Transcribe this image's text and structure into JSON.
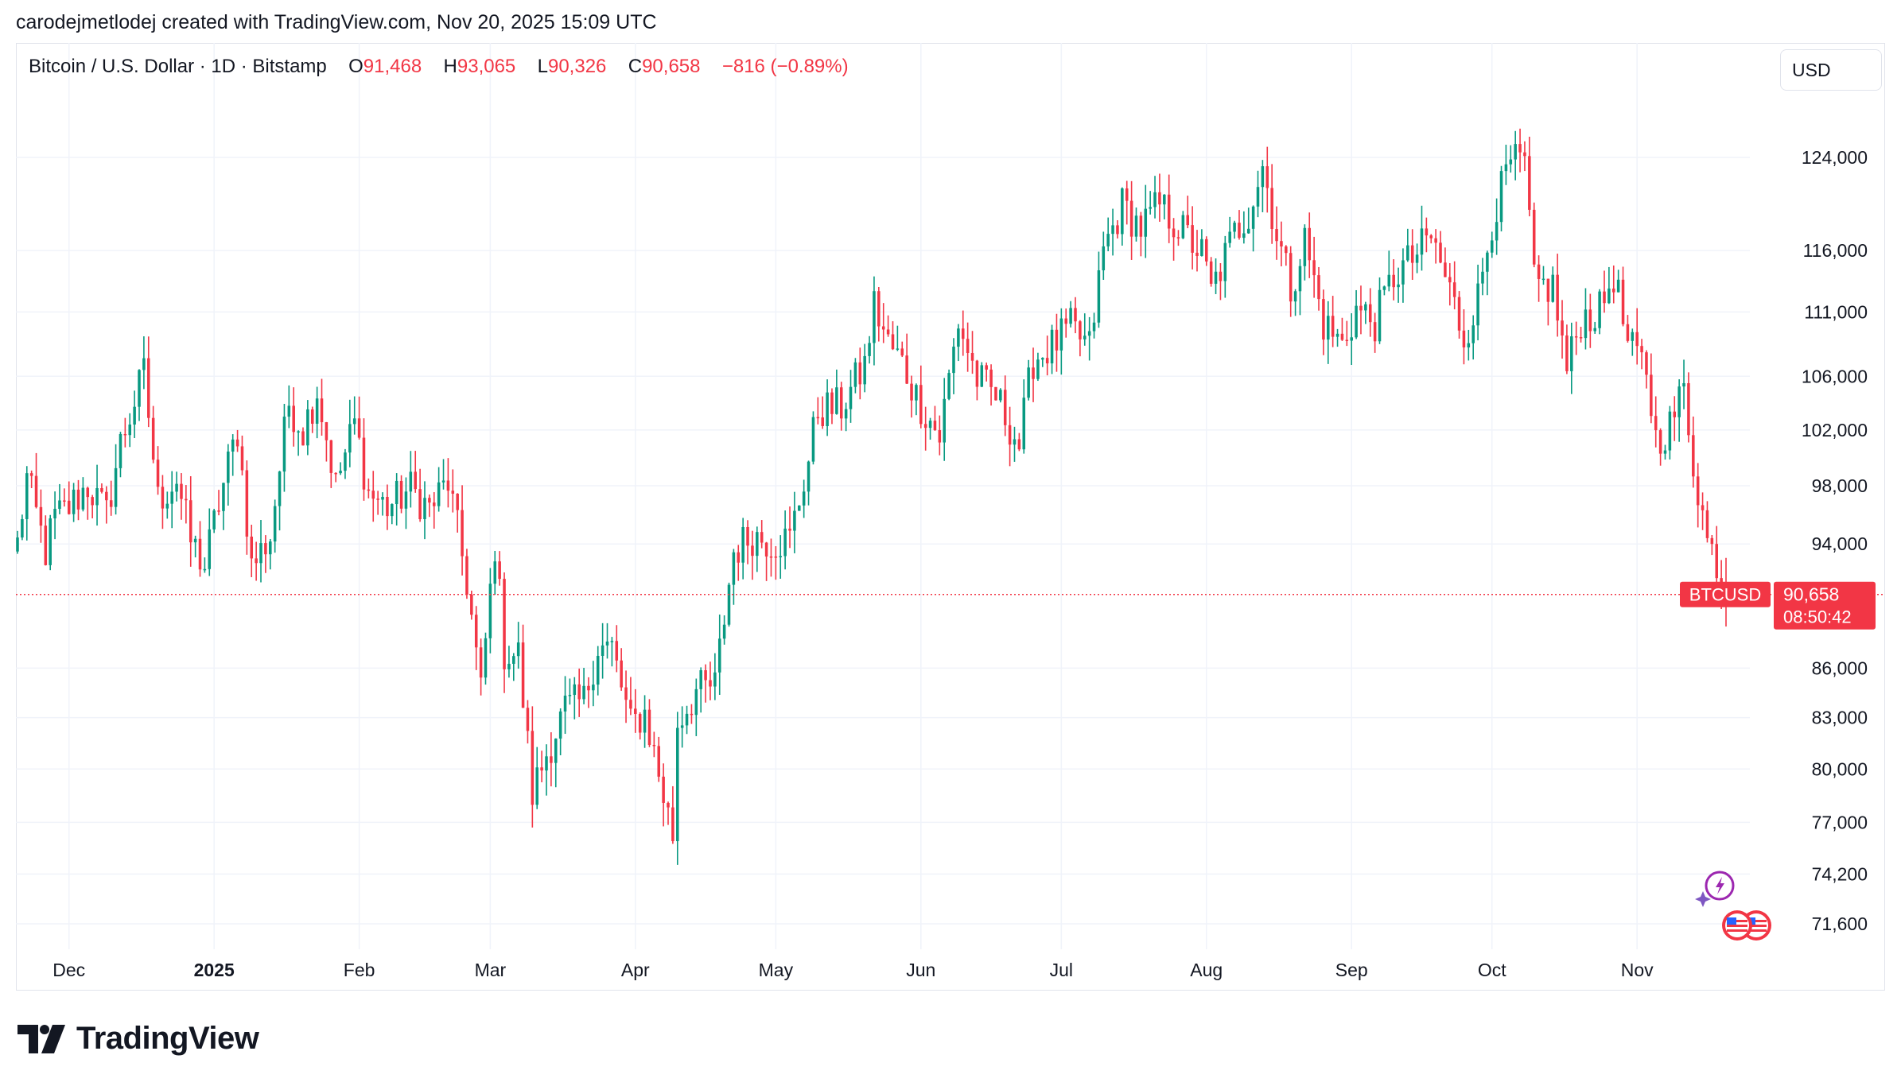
{
  "attribution": "carodejmetlodej created with TradingView.com, Nov 20, 2025 15:09 UTC",
  "legend": {
    "symbol": "Bitcoin / U.S. Dollar · 1D · Bitstamp",
    "o_label": "O",
    "o_value": "91,468",
    "h_label": "H",
    "h_value": "93,065",
    "l_label": "L",
    "l_value": "90,326",
    "c_label": "C",
    "c_value": "90,658",
    "change": "−816 (−0.89%)"
  },
  "currency_button": "USD",
  "brand": "TradingView",
  "colors": {
    "up": "#089981",
    "down": "#f23645",
    "grid": "#f0f3fa",
    "text": "#131722"
  },
  "icons": [
    "lightning-badge-icon",
    "us-flag-event-icon"
  ],
  "chart_data": {
    "type": "candlestick",
    "symbol": "BTCUSD",
    "interval": "1D",
    "x_range": [
      "2024-11-20",
      "2025-11-20"
    ],
    "y_ticks": [
      71600,
      74200,
      77000,
      80000,
      83000,
      86000,
      94000,
      98000,
      102000,
      106000,
      111000,
      116000,
      124000
    ],
    "y_tick_labels": [
      "71,600",
      "74,200",
      "77,000",
      "80,000",
      "83,000",
      "86,000",
      "94,000",
      "98,000",
      "102,000",
      "106,000",
      "111,000",
      "116,000",
      "124,000"
    ],
    "y_scale": "log",
    "x_ticks": [
      {
        "date": "2024-12-01",
        "label": "Dec"
      },
      {
        "date": "2025-01-01",
        "label": "2025",
        "bold": true
      },
      {
        "date": "2025-02-01",
        "label": "Feb"
      },
      {
        "date": "2025-03-01",
        "label": "Mar"
      },
      {
        "date": "2025-04-01",
        "label": "Apr"
      },
      {
        "date": "2025-05-01",
        "label": "May"
      },
      {
        "date": "2025-06-01",
        "label": "Jun"
      },
      {
        "date": "2025-07-01",
        "label": "Jul"
      },
      {
        "date": "2025-08-01",
        "label": "Aug"
      },
      {
        "date": "2025-09-01",
        "label": "Sep"
      },
      {
        "date": "2025-10-01",
        "label": "Oct"
      },
      {
        "date": "2025-11-01",
        "label": "Nov"
      }
    ],
    "price_path": [
      [
        "2024-11-20",
        94000
      ],
      [
        "2024-11-22",
        98500
      ],
      [
        "2024-11-26",
        93500
      ],
      [
        "2024-11-28",
        95800
      ],
      [
        "2024-12-01",
        96500
      ],
      [
        "2024-12-05",
        98000
      ],
      [
        "2024-12-09",
        96000
      ],
      [
        "2024-12-12",
        101000
      ],
      [
        "2024-12-17",
        106200
      ],
      [
        "2024-12-20",
        97000
      ],
      [
        "2024-12-24",
        98500
      ],
      [
        "2024-12-27",
        94200
      ],
      [
        "2024-12-30",
        92500
      ],
      [
        "2025-01-02",
        96800
      ],
      [
        "2025-01-06",
        102000
      ],
      [
        "2025-01-09",
        92500
      ],
      [
        "2025-01-13",
        94500
      ],
      [
        "2025-01-17",
        104000
      ],
      [
        "2025-01-20",
        102000
      ],
      [
        "2025-01-23",
        105000
      ],
      [
        "2025-01-27",
        98000
      ],
      [
        "2025-01-31",
        102500
      ],
      [
        "2025-02-03",
        97500
      ],
      [
        "2025-02-07",
        96500
      ],
      [
        "2025-02-12",
        97800
      ],
      [
        "2025-02-16",
        96400
      ],
      [
        "2025-02-20",
        98300
      ],
      [
        "2025-02-24",
        91500
      ],
      [
        "2025-02-27",
        84500
      ],
      [
        "2025-03-02",
        94000
      ],
      [
        "2025-03-04",
        87000
      ],
      [
        "2025-03-07",
        86800
      ],
      [
        "2025-03-10",
        78600
      ],
      [
        "2025-03-13",
        80900
      ],
      [
        "2025-03-17",
        83500
      ],
      [
        "2025-03-21",
        84000
      ],
      [
        "2025-03-24",
        87400
      ],
      [
        "2025-03-27",
        87200
      ],
      [
        "2025-03-31",
        82500
      ],
      [
        "2025-04-03",
        83300
      ],
      [
        "2025-04-07",
        78500
      ],
      [
        "2025-04-09",
        76300
      ],
      [
        "2025-04-10",
        82700
      ],
      [
        "2025-04-14",
        84600
      ],
      [
        "2025-04-18",
        84900
      ],
      [
        "2025-04-22",
        93500
      ],
      [
        "2025-04-26",
        94600
      ],
      [
        "2025-04-30",
        94200
      ],
      [
        "2025-05-04",
        94300
      ],
      [
        "2025-05-08",
        99800
      ],
      [
        "2025-05-10",
        103500
      ],
      [
        "2025-05-15",
        103700
      ],
      [
        "2025-05-20",
        106800
      ],
      [
        "2025-05-22",
        111600
      ],
      [
        "2025-05-25",
        108500
      ],
      [
        "2025-05-28",
        107000
      ],
      [
        "2025-05-31",
        104500
      ],
      [
        "2025-06-05",
        101500
      ],
      [
        "2025-06-09",
        110200
      ],
      [
        "2025-06-13",
        105800
      ],
      [
        "2025-06-17",
        104500
      ],
      [
        "2025-06-22",
        100900
      ],
      [
        "2025-06-25",
        107300
      ],
      [
        "2025-06-29",
        108300
      ],
      [
        "2025-07-03",
        109700
      ],
      [
        "2025-07-07",
        108200
      ],
      [
        "2025-07-10",
        116000
      ],
      [
        "2025-07-14",
        119800
      ],
      [
        "2025-07-18",
        117900
      ],
      [
        "2025-07-22",
        119800
      ],
      [
        "2025-07-26",
        118000
      ],
      [
        "2025-07-31",
        115700
      ],
      [
        "2025-08-02",
        112600
      ],
      [
        "2025-08-07",
        117400
      ],
      [
        "2025-08-10",
        119300
      ],
      [
        "2025-08-13",
        123300
      ],
      [
        "2025-08-16",
        117400
      ],
      [
        "2025-08-19",
        112900
      ],
      [
        "2025-08-22",
        116900
      ],
      [
        "2025-08-26",
        110100
      ],
      [
        "2025-08-30",
        108400
      ],
      [
        "2025-09-02",
        111200
      ],
      [
        "2025-09-06",
        110200
      ],
      [
        "2025-09-10",
        113900
      ],
      [
        "2025-09-14",
        115300
      ],
      [
        "2025-09-18",
        117100
      ],
      [
        "2025-09-22",
        112700
      ],
      [
        "2025-09-25",
        109000
      ],
      [
        "2025-09-28",
        112100
      ],
      [
        "2025-10-01",
        118600
      ],
      [
        "2025-10-05",
        123500
      ],
      [
        "2025-10-08",
        123300
      ],
      [
        "2025-10-10",
        113200
      ],
      [
        "2025-10-14",
        113000
      ],
      [
        "2025-10-17",
        106400
      ],
      [
        "2025-10-20",
        110500
      ],
      [
        "2025-10-24",
        111000
      ],
      [
        "2025-10-27",
        114100
      ],
      [
        "2025-10-30",
        108300
      ],
      [
        "2025-11-03",
        106500
      ],
      [
        "2025-11-05",
        101300
      ],
      [
        "2025-11-08",
        102300
      ],
      [
        "2025-11-11",
        105000
      ],
      [
        "2025-11-13",
        99700
      ],
      [
        "2025-11-16",
        94200
      ],
      [
        "2025-11-18",
        92900
      ],
      [
        "2025-11-20",
        90658
      ]
    ],
    "last_price": {
      "label": "BTCUSD",
      "value": "90,658",
      "countdown": "08:50:42",
      "numeric": 90658
    }
  }
}
